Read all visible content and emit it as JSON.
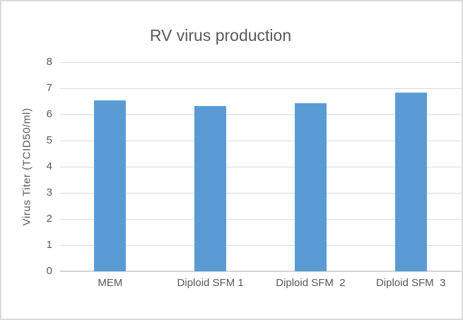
{
  "chart_data": {
    "type": "bar",
    "title": "RV virus production",
    "categories": [
      "MEM",
      "Diploid SFM 1",
      "Diploid SFM  2",
      "Diploid SFM  3"
    ],
    "values": [
      6.5,
      6.3,
      6.4,
      6.8
    ],
    "series": [
      {
        "name": "Virus Titer",
        "values": [
          6.5,
          6.3,
          6.4,
          6.8
        ]
      }
    ],
    "xlabel": "",
    "ylabel": "Virus Titer (TCID50/ml)",
    "ylim": [
      0,
      8
    ],
    "yticks": [
      0,
      1,
      2,
      3,
      4,
      5,
      6,
      7,
      8
    ],
    "grid": true,
    "legend": false,
    "colors": {
      "bar": "#5b9bd5",
      "text": "#595959",
      "gridline": "#d9d9d9",
      "axis_line": "#d4d4d4",
      "frame_border": "#dcdcdc",
      "background": "#ffffff"
    }
  }
}
